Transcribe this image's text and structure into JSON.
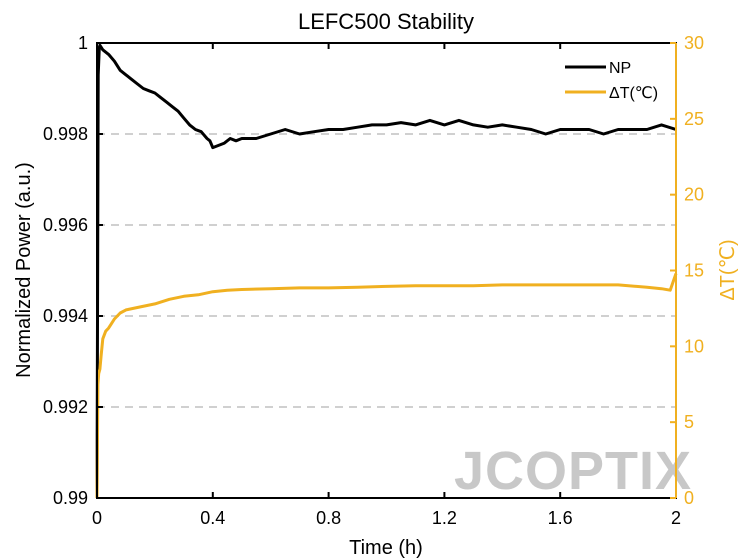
{
  "chart_data": {
    "type": "line",
    "title": "LEFC500 Stability",
    "xlabel": "Time (h)",
    "ylabel_left": "Normalized Power (a.u.)",
    "ylabel_right": "ΔT(℃)",
    "xlim": [
      0,
      2
    ],
    "ylim_left": [
      0.99,
      1.0
    ],
    "ylim_right": [
      0,
      30
    ],
    "x_ticks": [
      0,
      0.4,
      0.8,
      1.2,
      1.6,
      2
    ],
    "x_tick_labels": [
      "0",
      "0.4",
      "0.8",
      "1.2",
      "1.6",
      "2"
    ],
    "y_left_ticks": [
      0.99,
      0.992,
      0.994,
      0.996,
      0.998,
      1.0
    ],
    "y_left_tick_labels": [
      "0.99",
      "0.992",
      "0.994",
      "0.996",
      "0.998",
      "1"
    ],
    "y_right_ticks": [
      0,
      5,
      10,
      15,
      20,
      25,
      30
    ],
    "y_right_tick_labels": [
      "0",
      "5",
      "10",
      "15",
      "20",
      "25",
      "30"
    ],
    "grid": "horizontal dashed at left-axis ticks",
    "legend_position": "top-right",
    "series": [
      {
        "name": "NP",
        "axis": "left",
        "color": "#000000",
        "x": [
          0,
          0.004,
          0.008,
          0.01,
          0.02,
          0.04,
          0.06,
          0.08,
          0.1,
          0.12,
          0.14,
          0.16,
          0.18,
          0.2,
          0.22,
          0.24,
          0.26,
          0.28,
          0.3,
          0.32,
          0.34,
          0.36,
          0.38,
          0.39,
          0.4,
          0.42,
          0.44,
          0.46,
          0.48,
          0.5,
          0.55,
          0.6,
          0.65,
          0.7,
          0.75,
          0.8,
          0.85,
          0.9,
          0.95,
          1.0,
          1.05,
          1.1,
          1.15,
          1.2,
          1.25,
          1.3,
          1.35,
          1.4,
          1.45,
          1.5,
          1.55,
          1.6,
          1.65,
          1.7,
          1.75,
          1.8,
          1.85,
          1.9,
          1.95,
          2.0
        ],
        "values": [
          0.99,
          0.9993,
          0.9999,
          0.99995,
          0.99985,
          0.99975,
          0.9996,
          0.9994,
          0.9993,
          0.9992,
          0.9991,
          0.999,
          0.99895,
          0.9989,
          0.9988,
          0.9987,
          0.9986,
          0.9985,
          0.99835,
          0.9982,
          0.9981,
          0.99805,
          0.9979,
          0.99785,
          0.9977,
          0.99775,
          0.9978,
          0.9979,
          0.99785,
          0.9979,
          0.9979,
          0.998,
          0.9981,
          0.998,
          0.99805,
          0.9981,
          0.9981,
          0.99815,
          0.9982,
          0.9982,
          0.99825,
          0.9982,
          0.9983,
          0.9982,
          0.9983,
          0.9982,
          0.99815,
          0.9982,
          0.99815,
          0.9981,
          0.998,
          0.9981,
          0.9981,
          0.9981,
          0.998,
          0.9981,
          0.9981,
          0.9981,
          0.9982,
          0.9981
        ]
      },
      {
        "name": "ΔT(℃)",
        "axis": "right",
        "color": "#F0B020",
        "x": [
          0,
          0.003,
          0.006,
          0.01,
          0.015,
          0.02,
          0.03,
          0.04,
          0.05,
          0.06,
          0.08,
          0.1,
          0.15,
          0.2,
          0.25,
          0.3,
          0.35,
          0.4,
          0.45,
          0.5,
          0.6,
          0.7,
          0.8,
          0.9,
          1.0,
          1.1,
          1.2,
          1.3,
          1.4,
          1.5,
          1.6,
          1.7,
          1.8,
          1.9,
          1.95,
          1.98,
          2.0
        ],
        "values": [
          0,
          7.5,
          8.2,
          8.5,
          9.5,
          10.5,
          11.0,
          11.2,
          11.5,
          11.8,
          12.2,
          12.4,
          12.6,
          12.8,
          13.1,
          13.3,
          13.4,
          13.6,
          13.7,
          13.75,
          13.8,
          13.85,
          13.85,
          13.9,
          13.95,
          14.0,
          14.0,
          14.0,
          14.05,
          14.05,
          14.05,
          14.05,
          14.05,
          13.9,
          13.8,
          13.7,
          14.8
        ]
      }
    ]
  },
  "watermark": "JCOPTIX",
  "colors": {
    "np_line": "#000000",
    "dt_line": "#F0B020",
    "right_axis": "#F0B020",
    "grid": "#D0D0D0",
    "watermark": "#C8C8C8"
  }
}
